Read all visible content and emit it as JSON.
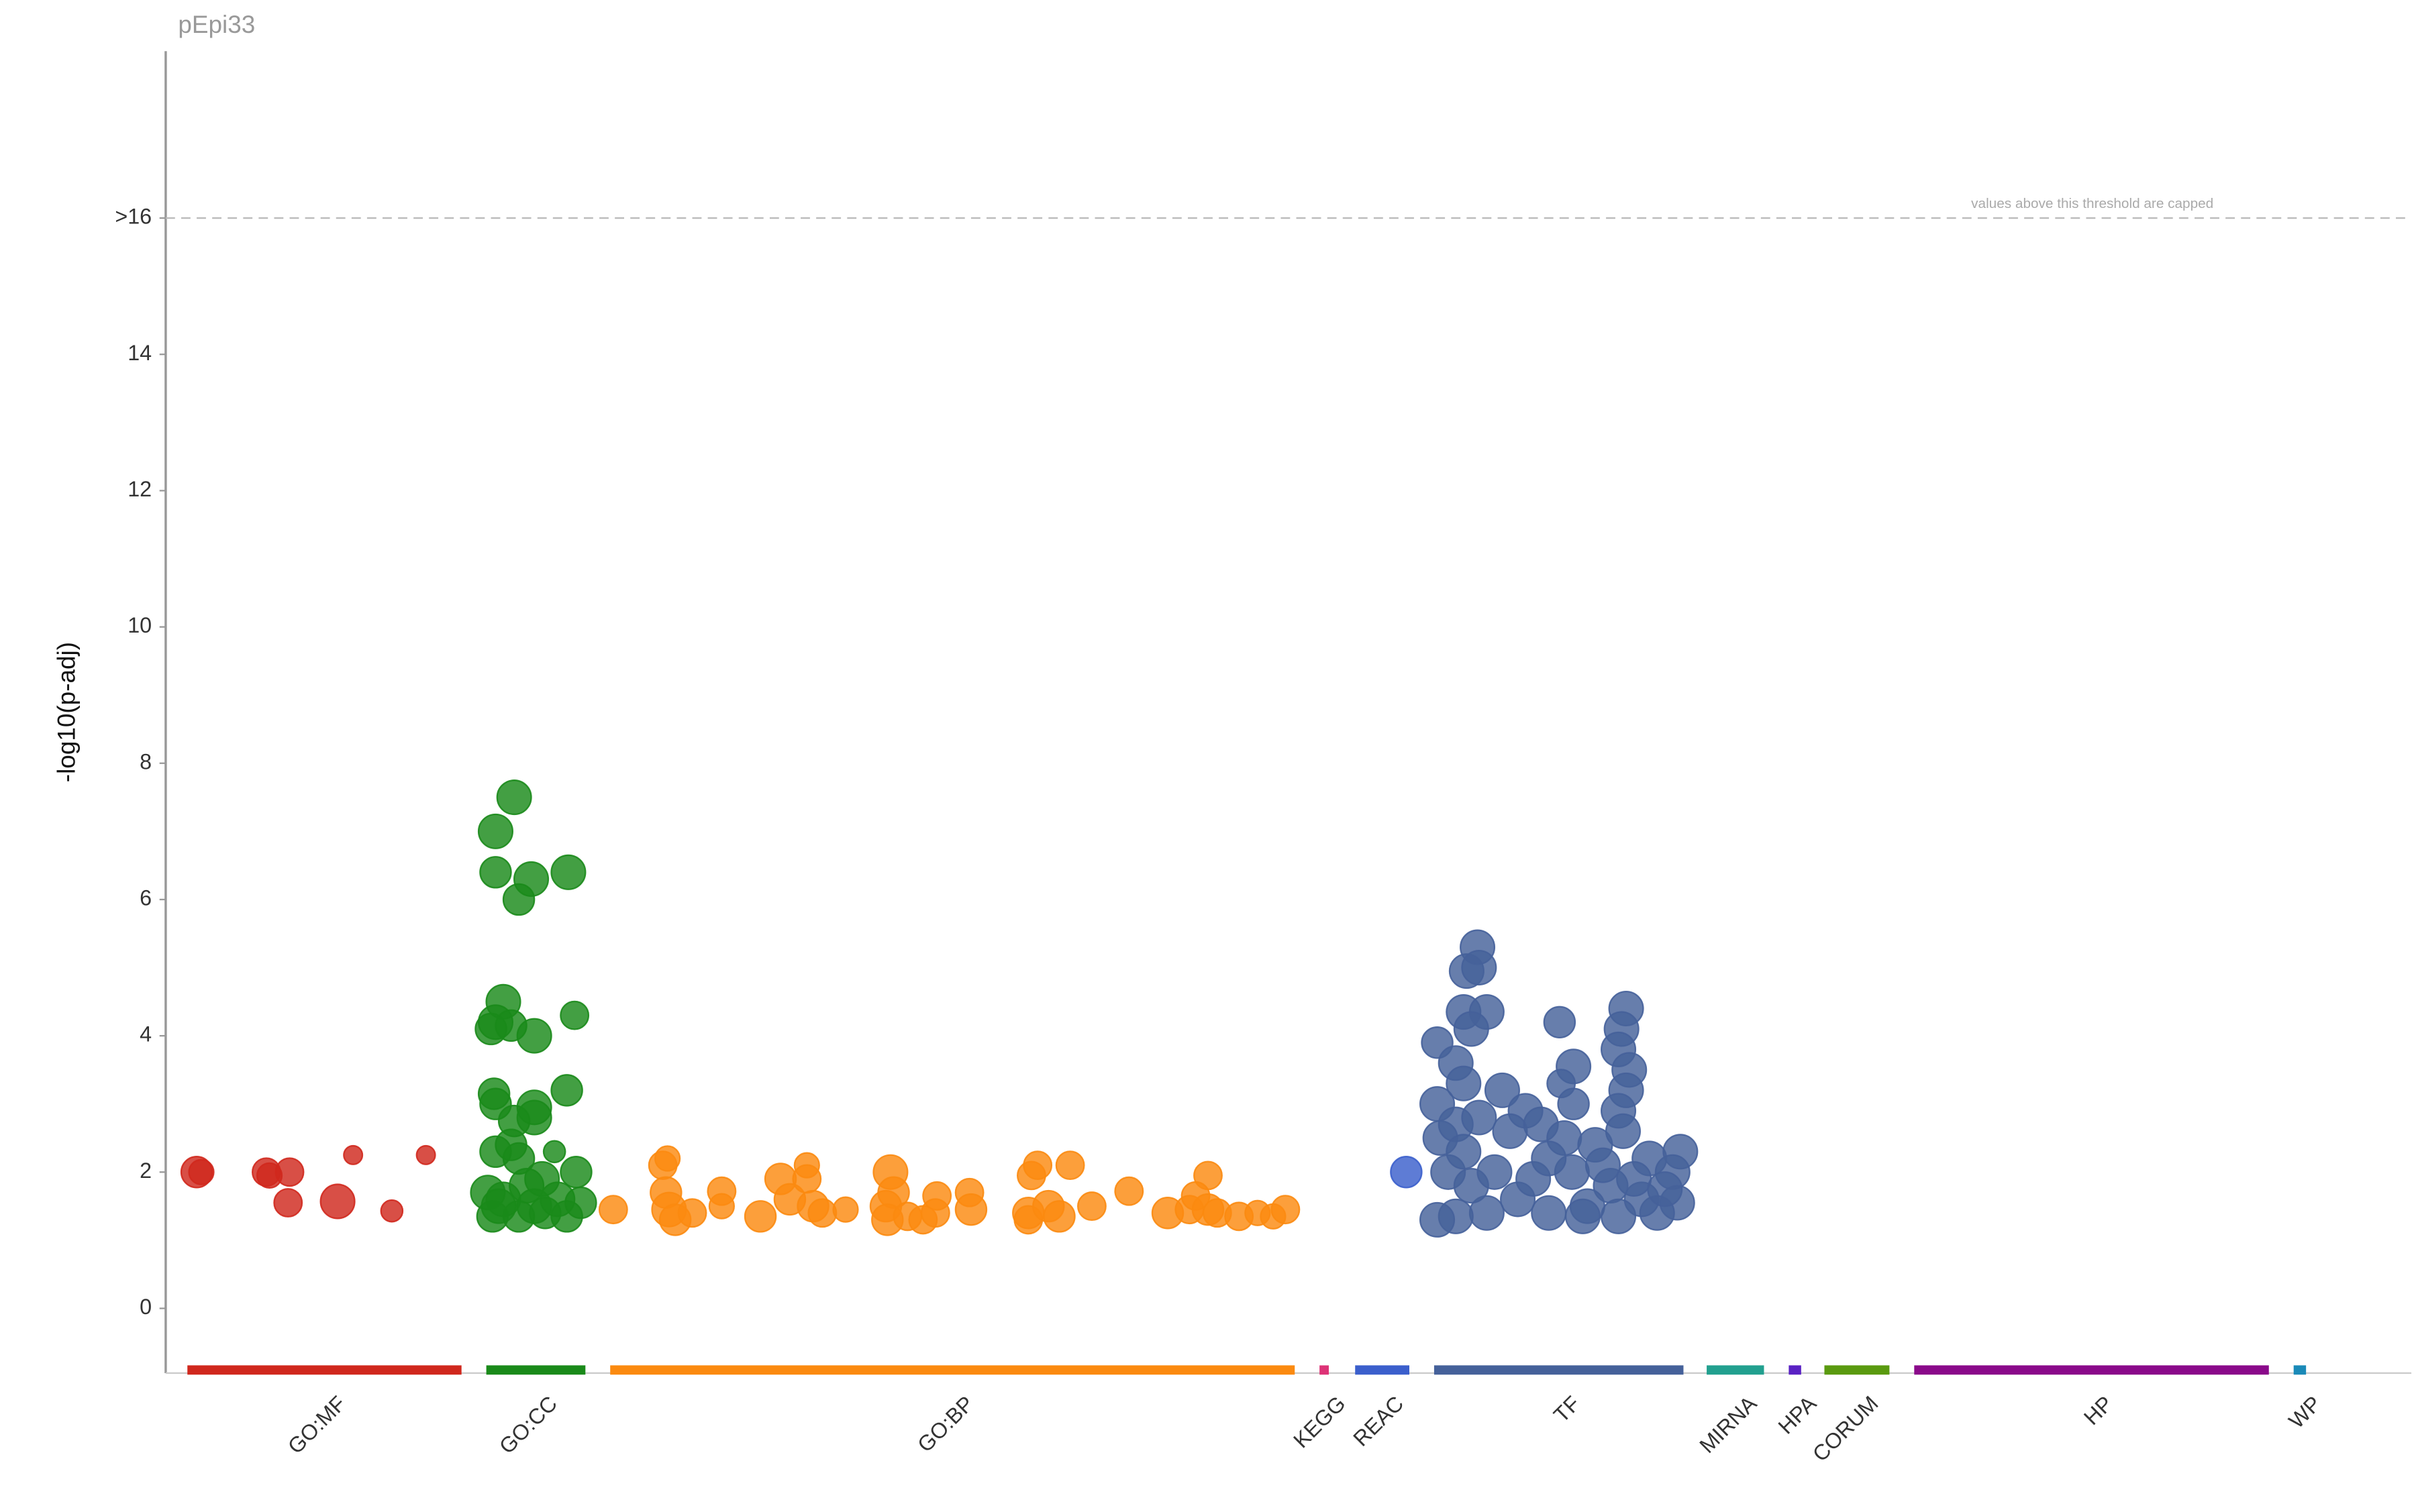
{
  "chart_data": {
    "type": "scatter",
    "title": "pEpi33",
    "y_label": "-log10(p-adj)",
    "annotation": "values above this threshold are capped",
    "xlim": [
      0,
      1450
    ],
    "ylim": [
      -0.95,
      18.45
    ],
    "yticks": [
      0,
      2,
      4,
      6,
      8,
      10,
      12,
      14,
      {
        "value": 16,
        "label": ">16"
      }
    ],
    "threshold": 16,
    "series": [
      {
        "name": "GO:MF",
        "color": "#d0281d",
        "range": [
          14,
          191
        ],
        "x": [
          20,
          23,
          65,
          67,
          80,
          79,
          111,
          121,
          146,
          168
        ],
        "values": [
          2.0,
          2.0,
          2.0,
          1.95,
          2.0,
          1.55,
          1.57,
          2.25,
          1.43,
          2.25
        ],
        "sizes": [
          10,
          8,
          9,
          8,
          9,
          9,
          11,
          6,
          7,
          6
        ]
      },
      {
        "name": "GO:CC",
        "color": "#1a8a1a",
        "range": [
          207,
          271
        ],
        "x": [
          225,
          213,
          213,
          236,
          260,
          228,
          218,
          213,
          210,
          223,
          238,
          264,
          212,
          213,
          238,
          238,
          225,
          259,
          213,
          223,
          228,
          251,
          265,
          208,
          218,
          233,
          243,
          253,
          268,
          211,
          228,
          245,
          259,
          215,
          238
        ],
        "values": [
          7.5,
          7.0,
          6.4,
          6.3,
          6.4,
          6.0,
          4.5,
          4.2,
          4.1,
          4.15,
          4.0,
          4.3,
          3.15,
          3.0,
          2.95,
          2.8,
          2.75,
          3.2,
          2.3,
          2.4,
          2.2,
          2.3,
          2.0,
          1.7,
          1.6,
          1.8,
          1.9,
          1.6,
          1.55,
          1.35,
          1.35,
          1.4,
          1.35,
          1.5,
          1.5
        ],
        "sizes": [
          11,
          11,
          10,
          11,
          11,
          10,
          11,
          11,
          10,
          10,
          11,
          9,
          10,
          10,
          11,
          11,
          10,
          10,
          10,
          10,
          10,
          7,
          10,
          11,
          11,
          11,
          11,
          11,
          10,
          10,
          10,
          10,
          10,
          11,
          11
        ]
      },
      {
        "name": "GO:BP",
        "color": "#fb8a10",
        "range": [
          287,
          729
        ],
        "x": [
          289,
          321,
          324,
          323,
          325,
          329,
          340,
          359,
          359,
          384,
          397,
          403,
          414,
          414,
          418,
          424,
          439,
          468,
          470,
          465,
          466,
          479,
          489,
          497,
          498,
          519,
          520,
          559,
          563,
          557,
          557,
          570,
          577,
          584,
          598,
          622,
          647,
          661,
          673,
          665,
          673,
          679,
          693,
          705,
          715,
          723
        ],
        "values": [
          1.45,
          2.1,
          2.2,
          1.7,
          1.45,
          1.3,
          1.4,
          1.72,
          1.5,
          1.35,
          1.9,
          1.6,
          2.1,
          1.9,
          1.5,
          1.4,
          1.45,
          2.0,
          1.7,
          1.5,
          1.3,
          1.35,
          1.3,
          1.4,
          1.65,
          1.7,
          1.45,
          1.95,
          2.1,
          1.4,
          1.3,
          1.5,
          1.35,
          2.1,
          1.5,
          1.72,
          1.4,
          1.45,
          1.95,
          1.65,
          1.45,
          1.4,
          1.35,
          1.4,
          1.35,
          1.45
        ],
        "sizes": [
          9,
          9,
          8,
          10,
          11,
          10,
          9,
          9,
          8,
          10,
          10,
          10,
          8,
          9,
          10,
          9,
          8,
          11,
          10,
          10,
          10,
          9,
          9,
          9,
          9,
          9,
          10,
          9,
          9,
          10,
          9,
          10,
          10,
          9,
          9,
          9,
          10,
          9,
          9,
          9,
          10,
          9,
          9,
          8,
          8,
          9
        ]
      },
      {
        "name": "KEGG",
        "color": "#dd3377",
        "range": [
          745,
          751
        ],
        "x": [],
        "values": [],
        "sizes": []
      },
      {
        "name": "REAC",
        "color": "#3b5fcc",
        "range": [
          768,
          803
        ],
        "x": [
          801
        ],
        "values": [
          2.0
        ],
        "sizes": [
          10
        ]
      },
      {
        "name": "TF",
        "color": "#45619a",
        "range": [
          819,
          980
        ],
        "x": [
          847,
          840,
          848,
          838,
          853,
          843,
          821,
          833,
          838,
          863,
          821,
          878,
          823,
          833,
          848,
          868,
          888,
          903,
          900,
          909,
          901,
          909,
          923,
          943,
          940,
          938,
          945,
          943,
          938,
          941,
          958,
          978,
          973,
          976,
          963,
          953,
          933,
          918,
          893,
          873,
          853,
          833,
          821,
          828,
          843,
          858,
          883,
          908,
          928,
          948,
          968,
          915,
          838,
          893,
          938
        ],
        "values": [
          5.3,
          4.95,
          5.0,
          4.35,
          4.35,
          4.1,
          3.9,
          3.6,
          3.3,
          3.2,
          3.0,
          2.9,
          2.5,
          2.7,
          2.8,
          2.6,
          2.7,
          2.5,
          4.2,
          3.55,
          3.3,
          3.0,
          2.4,
          4.4,
          4.1,
          3.8,
          3.5,
          3.2,
          2.9,
          2.6,
          2.2,
          2.3,
          2.0,
          1.55,
          1.4,
          1.6,
          1.8,
          1.5,
          1.4,
          1.6,
          1.4,
          1.35,
          1.3,
          2.0,
          1.8,
          2.0,
          1.9,
          2.0,
          2.1,
          1.9,
          1.75,
          1.35,
          2.3,
          2.2,
          1.35
        ],
        "sizes": [
          11,
          11,
          11,
          11,
          11,
          11,
          10,
          11,
          11,
          11,
          11,
          11,
          11,
          11,
          11,
          11,
          11,
          11,
          10,
          11,
          9,
          10,
          11,
          11,
          11,
          11,
          11,
          11,
          11,
          11,
          11,
          11,
          11,
          11,
          11,
          11,
          11,
          11,
          11,
          11,
          11,
          11,
          11,
          11,
          11,
          11,
          11,
          11,
          11,
          11,
          11,
          11,
          11,
          11,
          11
        ]
      },
      {
        "name": "MIRNA",
        "color": "#22a08f",
        "range": [
          995,
          1032
        ],
        "x": [],
        "values": [],
        "sizes": []
      },
      {
        "name": "HPA",
        "color": "#5a22c4",
        "range": [
          1048,
          1056
        ],
        "x": [],
        "values": [],
        "sizes": []
      },
      {
        "name": "CORUM",
        "color": "#5a9a10",
        "range": [
          1071,
          1113
        ],
        "x": [],
        "values": [],
        "sizes": []
      },
      {
        "name": "HP",
        "color": "#8a0a8a",
        "range": [
          1129,
          1358
        ],
        "x": [],
        "values": [],
        "sizes": []
      },
      {
        "name": "WP",
        "color": "#1a8ab8",
        "range": [
          1374,
          1382
        ],
        "x": [],
        "values": [],
        "sizes": []
      }
    ]
  }
}
